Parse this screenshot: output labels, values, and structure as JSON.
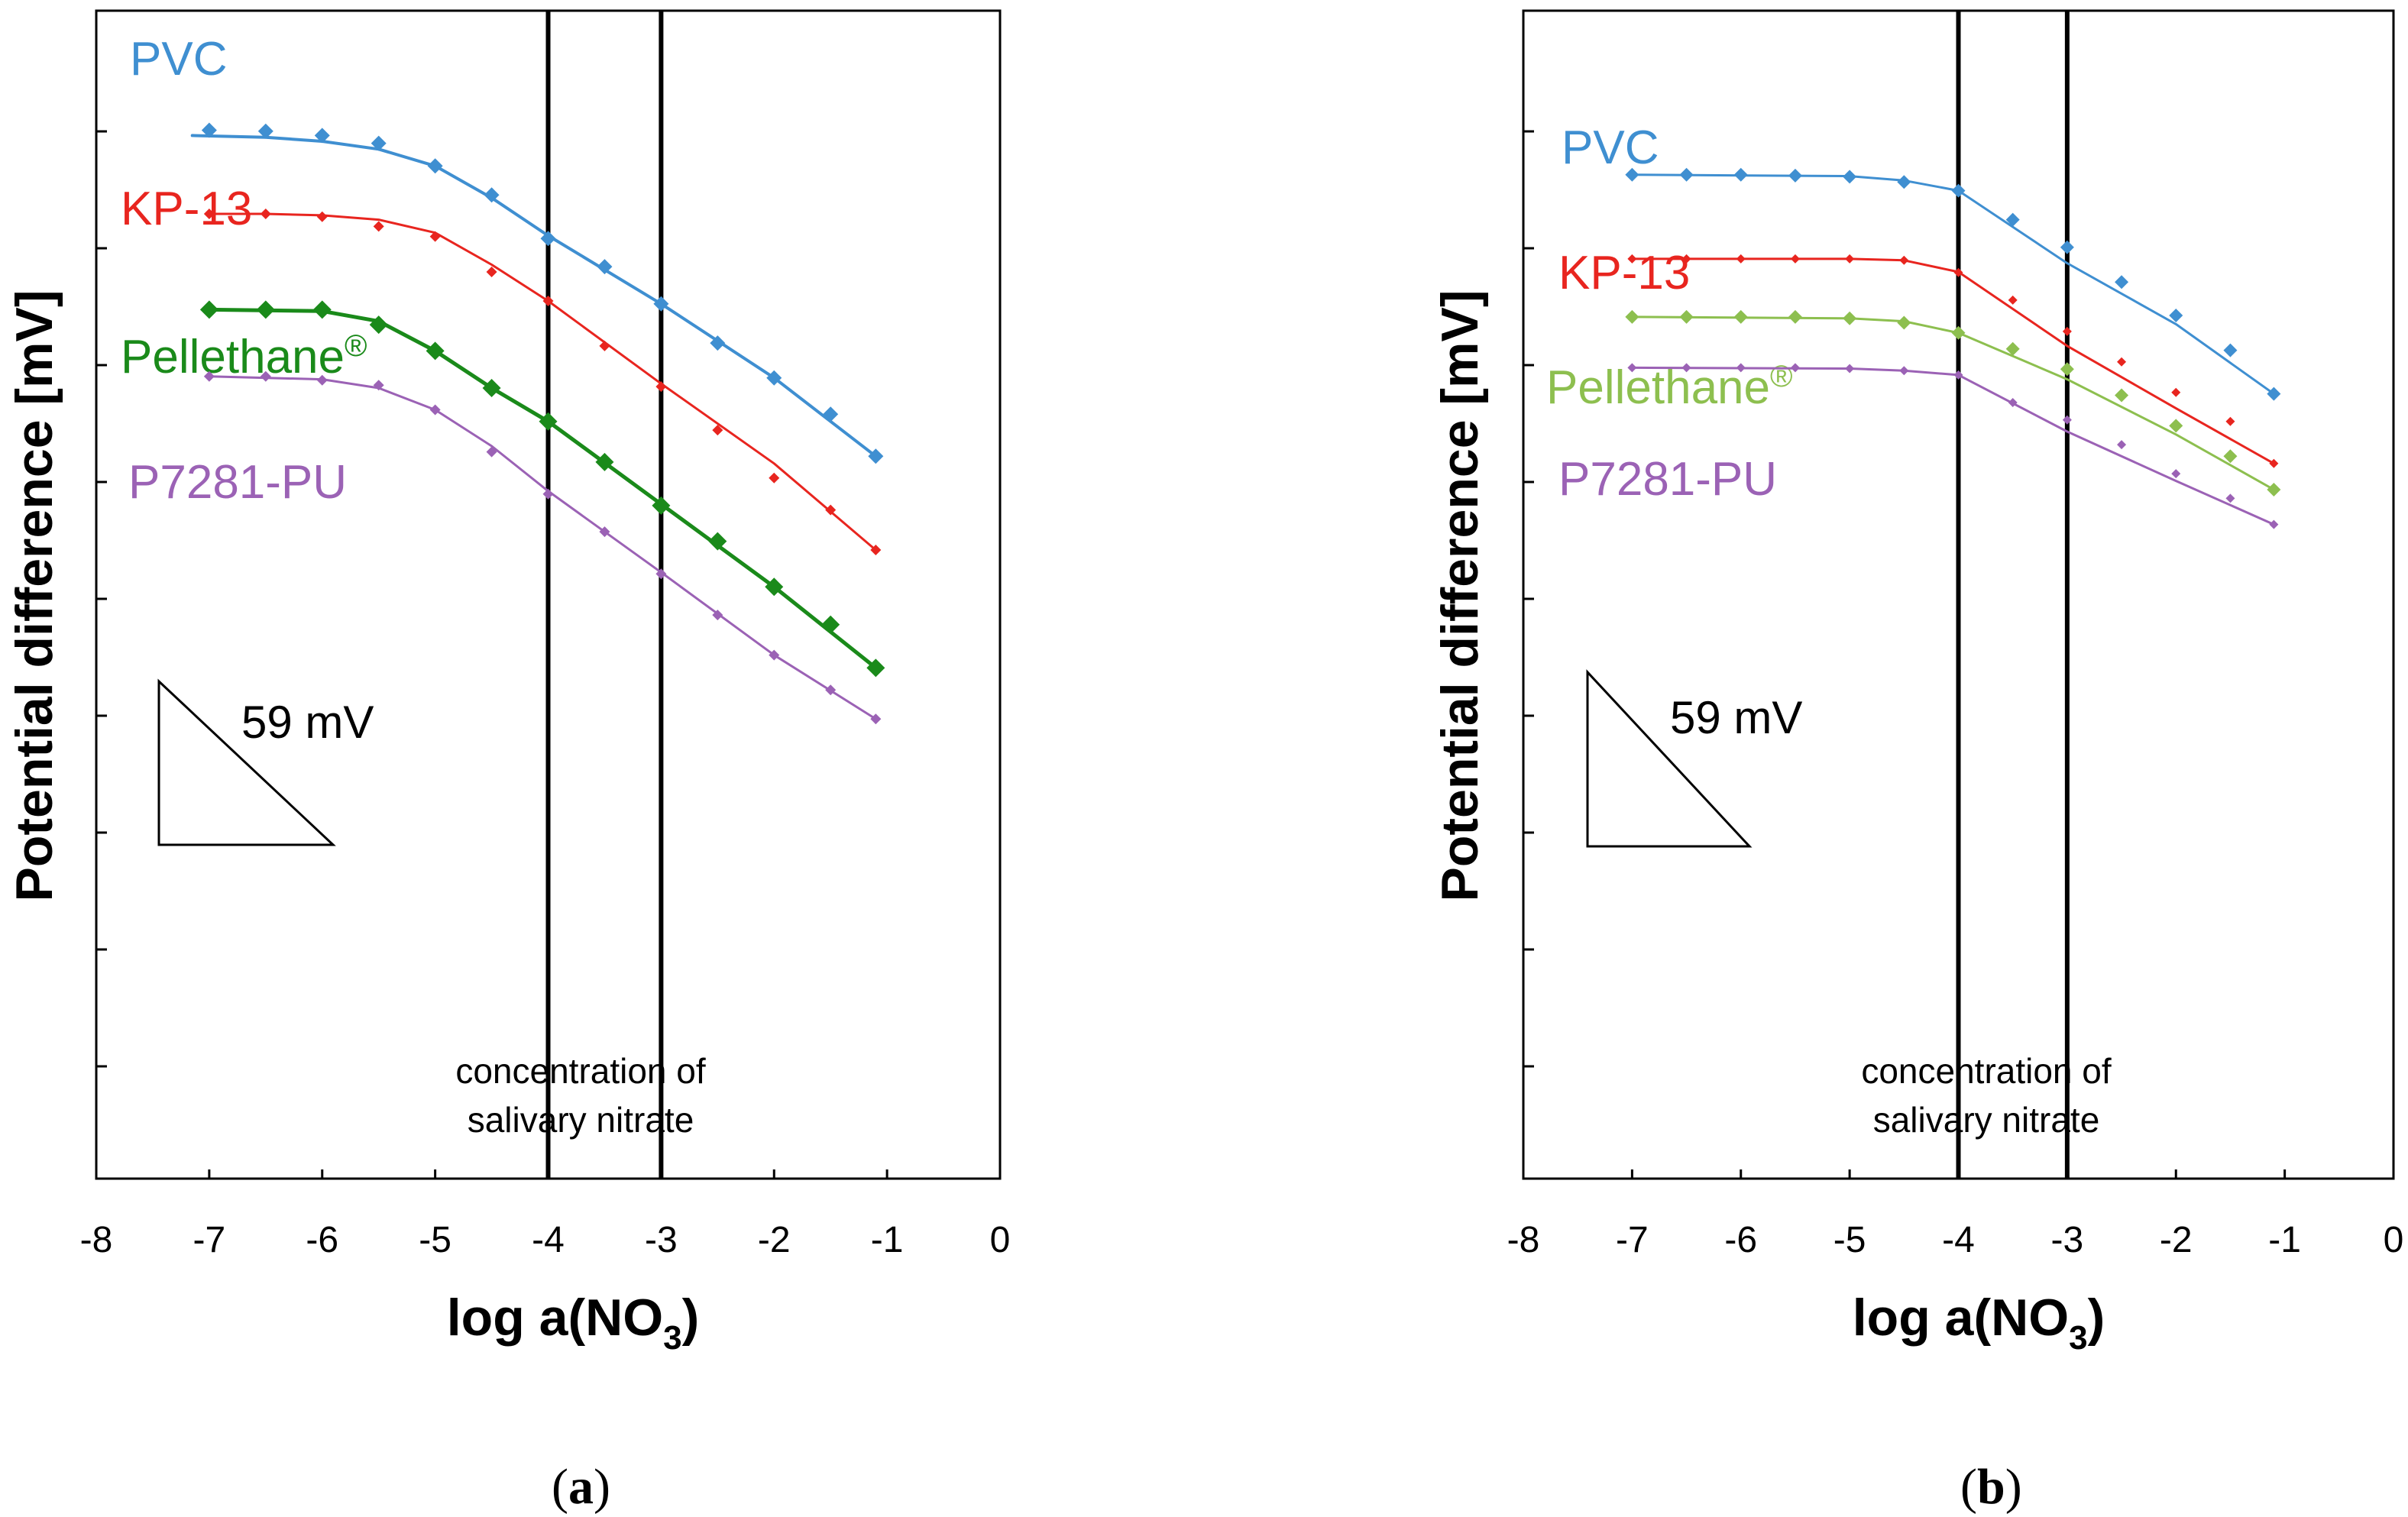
{
  "chart_data": [
    {
      "type": "line",
      "panel_label": "a",
      "xlabel": "log a(NO",
      "xlabel_sub": "3",
      "xlabel_close": ")",
      "ylabel": "Potential difference [mV]",
      "xlim": [
        -8,
        0
      ],
      "xticks": [
        -8,
        -7,
        -6,
        -5,
        -4,
        -3,
        -2,
        -1,
        0
      ],
      "y_tick_count": 9,
      "y_unit_mV": 59,
      "vlines": [
        -4,
        -3
      ],
      "annotation": [
        "concentration of",
        "salivary nitrate"
      ],
      "slope_label": "59 mV",
      "series": [
        {
          "name": "PVC",
          "color": "#3f8fd1",
          "marker_size": 10,
          "line_width": 4,
          "x": [
            -7,
            -6.5,
            -6,
            -5.5,
            -5,
            -4.5,
            -4,
            -3.5,
            -3,
            -2.5,
            -2,
            -1.5,
            -1.1
          ],
          "y": [
            0.12,
            0.15,
            0.3,
            0.57,
            1.35,
            2.35,
            3.85,
            4.82,
            6.1,
            7.45,
            8.65,
            9.9,
            11.35
          ],
          "fit": [
            [
              -7.15,
              0.3
            ],
            [
              -6.5,
              0.36
            ],
            [
              -6,
              0.5
            ],
            [
              -5.5,
              0.77
            ],
            [
              -5,
              1.35
            ],
            [
              -4.5,
              2.45
            ],
            [
              -4,
              3.75
            ],
            [
              -3,
              6.1
            ],
            [
              -2,
              8.65
            ],
            [
              -1.1,
              11.35
            ]
          ]
        },
        {
          "name": "KP-13",
          "color": "#e8251f",
          "marker_size": 7,
          "line_width": 3,
          "x": [
            -7,
            -6.5,
            -6,
            -5.5,
            -5,
            -4.5,
            -4,
            -3.5,
            -3,
            -2.5,
            -2,
            -1.5,
            -1.1
          ],
          "y": [
            3.0,
            3.0,
            3.1,
            3.43,
            3.78,
            5.0,
            6.0,
            7.55,
            8.95,
            10.45,
            12.1,
            13.2,
            14.58
          ],
          "fit": [
            [
              -7,
              3.0
            ],
            [
              -6.5,
              3.0
            ],
            [
              -6,
              3.05
            ],
            [
              -5.5,
              3.2
            ],
            [
              -5,
              3.65
            ],
            [
              -4.5,
              4.75
            ],
            [
              -4,
              6.0
            ],
            [
              -3,
              8.85
            ],
            [
              -2,
              11.6
            ],
            [
              -1.1,
              14.58
            ]
          ]
        },
        {
          "name": "Pellethane®",
          "color": "#1a8a1a",
          "marker_size": 12,
          "line_width": 5,
          "x": [
            -7,
            -6.5,
            -6,
            -5.5,
            -5,
            -4.5,
            -4,
            -3.5,
            -3,
            -2.5,
            -2,
            -1.5,
            -1.1
          ],
          "y": [
            6.3,
            6.3,
            6.3,
            6.82,
            7.72,
            9.0,
            10.15,
            11.55,
            13.05,
            14.28,
            15.85,
            17.15,
            18.64
          ],
          "fit": [
            [
              -7,
              6.3
            ],
            [
              -6,
              6.35
            ],
            [
              -5.5,
              6.7
            ],
            [
              -5,
              7.72
            ],
            [
              -4.5,
              9.0
            ],
            [
              -4,
              10.15
            ],
            [
              -3,
              13.0
            ],
            [
              -2,
              15.85
            ],
            [
              -1.1,
              18.64
            ]
          ]
        },
        {
          "name": "P7281-PU",
          "color": "#9b62b5",
          "marker_size": 7,
          "line_width": 3,
          "x": [
            -7,
            -6.5,
            -6,
            -5.5,
            -5,
            -4.5,
            -4,
            -3.5,
            -3,
            -2.5,
            -2,
            -1.5,
            -1.1
          ],
          "y": [
            8.6,
            8.6,
            8.73,
            8.9,
            9.75,
            11.2,
            12.65,
            13.95,
            15.4,
            16.82,
            18.2,
            19.4,
            20.4
          ],
          "fit": [
            [
              -7,
              8.6
            ],
            [
              -6,
              8.7
            ],
            [
              -5.5,
              9.0
            ],
            [
              -5,
              9.75
            ],
            [
              -4.5,
              11.0
            ],
            [
              -4,
              12.55
            ],
            [
              -3,
              15.35
            ],
            [
              -2,
              18.2
            ],
            [
              -1.1,
              20.4
            ]
          ]
        }
      ]
    },
    {
      "type": "line",
      "panel_label": "b",
      "xlabel": "log a(NO",
      "xlabel_sub": "3",
      "xlabel_close": ")",
      "ylabel": "Potential difference [mV]",
      "xlim": [
        -8,
        0
      ],
      "xticks": [
        -8,
        -7,
        -6,
        -5,
        -4,
        -3,
        -2,
        -1,
        0
      ],
      "y_tick_count": 9,
      "y_unit_mV": 59,
      "vlines": [
        -4,
        -3
      ],
      "annotation": [
        "concentration of",
        "salivary nitrate"
      ],
      "slope_label": "59 mV",
      "series": [
        {
          "name": "PVC",
          "color": "#3f8fd1",
          "marker_size": 9,
          "line_width": 3,
          "x": [
            -7,
            -6.5,
            -6,
            -5.5,
            -5,
            -4.5,
            -4,
            -3.5,
            -3,
            -2.5,
            -2,
            -1.5,
            -1.1
          ],
          "y": [
            1.65,
            1.65,
            1.65,
            1.68,
            1.72,
            1.9,
            2.2,
            3.2,
            4.15,
            5.35,
            6.5,
            7.7,
            9.2
          ],
          "fit": [
            [
              -7,
              1.65
            ],
            [
              -5,
              1.7
            ],
            [
              -4.5,
              1.85
            ],
            [
              -4,
              2.2
            ],
            [
              -3,
              4.7
            ],
            [
              -2,
              6.8
            ],
            [
              -1.1,
              9.2
            ]
          ]
        },
        {
          "name": "KP-13",
          "color": "#e8251f",
          "marker_size": 6,
          "line_width": 3,
          "x": [
            -7,
            -6.5,
            -6,
            -5.5,
            -5,
            -4.5,
            -4,
            -3.5,
            -3,
            -2.5,
            -2,
            -1.5,
            -1.1
          ],
          "y": [
            4.55,
            4.55,
            4.55,
            4.55,
            4.55,
            4.6,
            5.02,
            5.97,
            7.05,
            8.1,
            9.15,
            10.15,
            11.6
          ],
          "fit": [
            [
              -7,
              4.55
            ],
            [
              -5,
              4.55
            ],
            [
              -4.5,
              4.6
            ],
            [
              -4,
              5.0
            ],
            [
              -3,
              7.55
            ],
            [
              -2,
              9.7
            ],
            [
              -1.1,
              11.6
            ]
          ]
        },
        {
          "name": "Pellethane®",
          "color": "#8dbf4f",
          "marker_size": 9,
          "line_width": 3,
          "x": [
            -7,
            -6.5,
            -6,
            -5.5,
            -5,
            -4.5,
            -4,
            -3.5,
            -3,
            -2.5,
            -2,
            -1.5,
            -1.1
          ],
          "y": [
            6.55,
            6.55,
            6.55,
            6.55,
            6.6,
            6.75,
            7.1,
            7.65,
            8.35,
            9.25,
            10.3,
            11.35,
            12.5
          ],
          "fit": [
            [
              -7,
              6.55
            ],
            [
              -5,
              6.6
            ],
            [
              -4.5,
              6.7
            ],
            [
              -4,
              7.1
            ],
            [
              -3,
              8.7
            ],
            [
              -2,
              10.6
            ],
            [
              -1.1,
              12.5
            ]
          ]
        },
        {
          "name": "P7281-PU",
          "color": "#9b62b5",
          "marker_size": 6,
          "line_width": 3,
          "x": [
            -7,
            -6.5,
            -6,
            -5.5,
            -5,
            -4.5,
            -4,
            -3.5,
            -3,
            -2.5,
            -2,
            -1.5,
            -1.1
          ],
          "y": [
            8.3,
            8.3,
            8.3,
            8.3,
            8.33,
            8.4,
            8.55,
            9.5,
            10.1,
            10.95,
            11.95,
            12.8,
            13.7
          ],
          "fit": [
            [
              -7,
              8.3
            ],
            [
              -5,
              8.33
            ],
            [
              -4.5,
              8.4
            ],
            [
              -4,
              8.55
            ],
            [
              -3,
              10.5
            ],
            [
              -2,
              12.2
            ],
            [
              -1.1,
              13.7
            ]
          ]
        }
      ]
    }
  ]
}
